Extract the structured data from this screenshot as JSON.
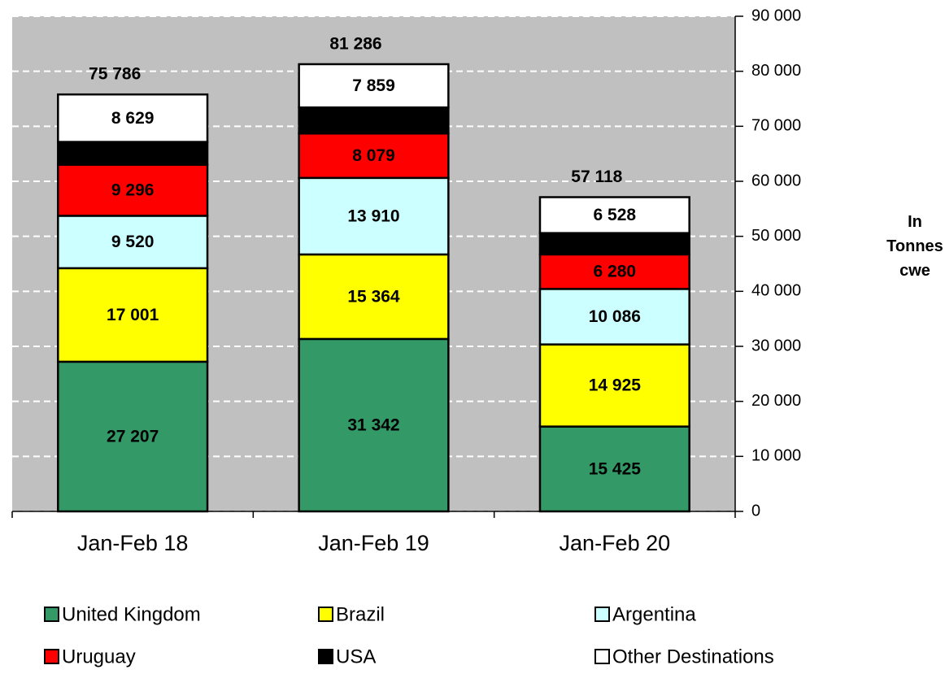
{
  "chart_data": {
    "type": "stacked_bar",
    "categories": [
      "Jan-Feb 18",
      "Jan-Feb 19",
      "Jan-Feb 20"
    ],
    "y_label": "In Tonnes cwe",
    "ylim": [
      0,
      90000
    ],
    "yticks": [
      0,
      {
        "value": 10000,
        "label": "10 000"
      },
      {
        "value": 20000,
        "label": "20 000"
      },
      {
        "value": 30000,
        "label": "30 000"
      },
      {
        "value": 40000,
        "label": "40 000"
      },
      {
        "value": 50000,
        "label": "50 000"
      },
      {
        "value": 60000,
        "label": "60 000"
      },
      {
        "value": 70000,
        "label": "70 000"
      },
      {
        "value": 80000,
        "label": "80 000"
      },
      {
        "value": 90000,
        "label": "90 000"
      }
    ],
    "grid": true,
    "series": [
      {
        "name": "United Kingdom",
        "color": "#339966",
        "values": [
          27207,
          31342,
          15425
        ],
        "value_labels": [
          "27 207",
          "31 342",
          "15 425"
        ]
      },
      {
        "name": "Brazil",
        "color": "#ffff00",
        "values": [
          17001,
          15364,
          14925
        ],
        "value_labels": [
          "17 001",
          "15 364",
          "14 925"
        ]
      },
      {
        "name": "Argentina",
        "color": "#ccffff",
        "values": [
          9520,
          13910,
          10086
        ],
        "value_labels": [
          "9 520",
          "13 910",
          "10 086"
        ]
      },
      {
        "name": "Uruguay",
        "color": "#ff0000",
        "values": [
          9296,
          8079,
          6280
        ],
        "value_labels": [
          "9 296",
          "8 079",
          "6 280"
        ]
      },
      {
        "name": "USA",
        "color": "#000000",
        "values": [
          4133,
          4732,
          3874
        ]
      },
      {
        "name": "Other Destinations",
        "color": "#ffffff",
        "values": [
          8629,
          7859,
          6528
        ],
        "value_labels": [
          "8 629",
          "7 859",
          "6 528"
        ]
      }
    ],
    "totals": {
      "values": [
        75786,
        81286,
        57118
      ],
      "value_labels": [
        "75 786",
        "81 286",
        "57 118"
      ]
    }
  }
}
